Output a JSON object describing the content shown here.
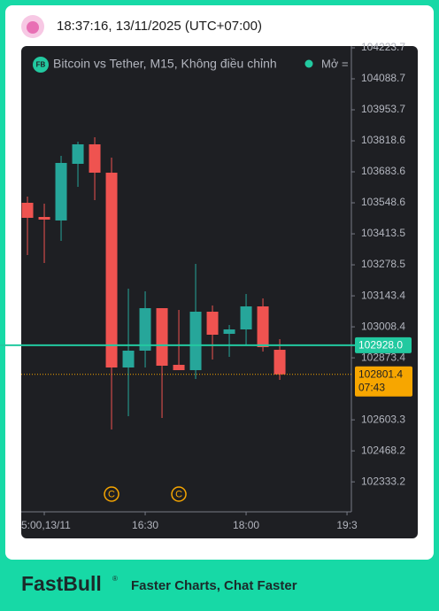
{
  "header": {
    "time": "18:37:16, 13/11/2025 (UTC+07:00)"
  },
  "chart_data": {
    "type": "candlestick",
    "title": "Bitcoin vs Tether, M15, Không điều chỉnh",
    "symbol_icon": "FB",
    "legend_extra": "Mở =",
    "open": [
      103548.7,
      103487.0,
      103471.6,
      103718.4,
      103803.3,
      103679.8,
      102831.3,
      102904.6,
      103089.7,
      102842.9,
      102819.7,
      103074.3,
      102977.9,
      102997.1,
      103097.4,
      102908.4
    ],
    "high": [
      103575.7,
      103544.8,
      103753.1,
      103814.8,
      103834.1,
      103745.4,
      103174.6,
      103163.0,
      103089.7,
      103082.0,
      103282.6,
      103101.3,
      103016.4,
      103151.4,
      103132.1,
      102954.7
    ],
    "low": [
      103321.1,
      103286.4,
      103382.8,
      103618.1,
      103560.3,
      102561.3,
      102619.1,
      102831.3,
      102611.4,
      102819.7,
      102781.1,
      102866.0,
      102877.6,
      102927.7,
      102900.7,
      102777.3
    ],
    "close": [
      103483.1,
      103475.4,
      103722.3,
      103803.3,
      103679.8,
      102831.3,
      102904.6,
      103089.7,
      102839.0,
      102819.7,
      103074.3,
      102974.0,
      102997.1,
      103097.4,
      102920.0,
      102801.4
    ],
    "up_color": "#26a69a",
    "down_color": "#ef5350",
    "ylim": [
      102202.6,
      104231.4
    ],
    "yticks": [
      104223.7,
      104088.7,
      103953.7,
      103818.6,
      103683.6,
      103548.6,
      103413.5,
      103278.5,
      103143.4,
      103008.4,
      102873.4,
      102603.3,
      102468.2,
      102333.2
    ],
    "xlim": [
      -0.37,
      19.26
    ],
    "xticks": [
      {
        "value": 1,
        "label": "5:00,13/11"
      },
      {
        "value": 7,
        "label": "16:30"
      },
      {
        "value": 13,
        "label": "18:00"
      },
      {
        "value": 19,
        "label": "19:3"
      }
    ],
    "price_lines": [
      {
        "value": 102928,
        "label": "102928.0",
        "color": "#22c9a0"
      },
      {
        "value": 102801.4,
        "countdown": "07:43",
        "color": "#f7a600"
      }
    ],
    "events": [
      {
        "x": 5,
        "label": "C"
      },
      {
        "x": 9,
        "label": "C"
      }
    ]
  },
  "footer": {
    "brand": "FastBull",
    "tagline": "Faster Charts, Chat Faster"
  }
}
